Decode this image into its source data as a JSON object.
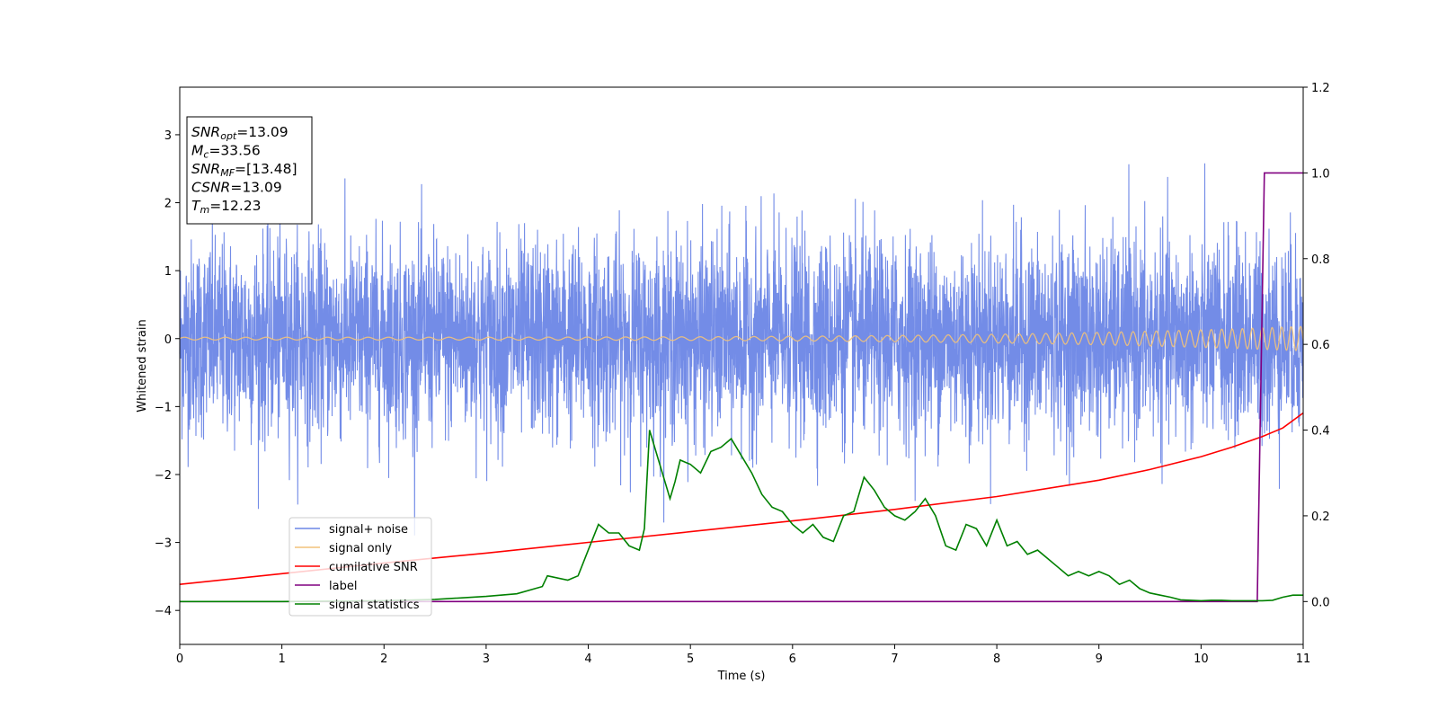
{
  "chart_data": {
    "type": "line",
    "xlabel": "Time (s)",
    "ylabel": "Whitened strain",
    "xlim": [
      0,
      11
    ],
    "ylim_left": [
      -4.5,
      3.7
    ],
    "ylim_right": [
      -0.1,
      1.2
    ],
    "x_ticks": [
      "0",
      "1",
      "2",
      "3",
      "4",
      "5",
      "6",
      "7",
      "8",
      "9",
      "10",
      "11"
    ],
    "y_left_ticks": [
      "3",
      "2",
      "1",
      "0",
      "−1",
      "−2",
      "−3",
      "−4"
    ],
    "y_right_ticks": [
      "1.2",
      "1.0",
      "0.8",
      "0.6",
      "0.4",
      "0.2",
      "0.0"
    ],
    "grid": false,
    "legend_position": "lower-left",
    "series": [
      {
        "name": "signal+ noise",
        "color": "#6b86e6",
        "axis": "left",
        "kind": "noise",
        "typical_amplitude": 1.3,
        "peak_values": [
          3.33,
          2.78,
          2.62,
          -2.67,
          -2.69,
          -3.1
        ]
      },
      {
        "name": "signal only",
        "color": "#f2c27a",
        "axis": "left",
        "kind": "chirp",
        "amplitude_start": 0.02,
        "amplitude_end": 0.18
      },
      {
        "name": "cumilative SNR",
        "color": "#ff0000",
        "axis": "right",
        "x": [
          0,
          1,
          2,
          3,
          4,
          5,
          6,
          7,
          8,
          9,
          9.5,
          10,
          10.3,
          10.6,
          10.8,
          11
        ],
        "y": [
          0.04,
          0.065,
          0.09,
          0.113,
          0.138,
          0.163,
          0.188,
          0.215,
          0.245,
          0.283,
          0.308,
          0.338,
          0.36,
          0.385,
          0.405,
          0.44
        ]
      },
      {
        "name": "label",
        "color": "#800080",
        "axis": "right",
        "x": [
          0,
          10.55,
          10.62,
          11
        ],
        "y": [
          0.0,
          0.0,
          1.0,
          1.0
        ]
      },
      {
        "name": "signal statistics",
        "color": "#008000",
        "axis": "right",
        "x": [
          0,
          1,
          2,
          2.5,
          3,
          3.3,
          3.55,
          3.6,
          3.8,
          3.9,
          4.0,
          4.1,
          4.2,
          4.3,
          4.4,
          4.5,
          4.55,
          4.6,
          4.7,
          4.8,
          4.85,
          4.9,
          5.0,
          5.1,
          5.2,
          5.3,
          5.4,
          5.5,
          5.6,
          5.7,
          5.8,
          5.9,
          6.0,
          6.1,
          6.2,
          6.3,
          6.4,
          6.5,
          6.6,
          6.7,
          6.8,
          6.9,
          7.0,
          7.1,
          7.2,
          7.3,
          7.4,
          7.5,
          7.6,
          7.7,
          7.8,
          7.9,
          8.0,
          8.1,
          8.2,
          8.3,
          8.4,
          8.5,
          8.6,
          8.7,
          8.8,
          8.9,
          9.0,
          9.1,
          9.2,
          9.3,
          9.4,
          9.5,
          9.6,
          9.7,
          9.8,
          9.9,
          10.0,
          10.1,
          10.2,
          10.3,
          10.4,
          10.5,
          10.6,
          10.7,
          10.8,
          10.9,
          11
        ],
        "y": [
          0.0,
          0.0,
          0.002,
          0.005,
          0.012,
          0.018,
          0.035,
          0.06,
          0.05,
          0.06,
          0.12,
          0.18,
          0.16,
          0.16,
          0.13,
          0.12,
          0.17,
          0.4,
          0.32,
          0.24,
          0.28,
          0.33,
          0.32,
          0.3,
          0.35,
          0.36,
          0.38,
          0.34,
          0.3,
          0.25,
          0.22,
          0.21,
          0.18,
          0.16,
          0.18,
          0.15,
          0.14,
          0.2,
          0.21,
          0.29,
          0.26,
          0.22,
          0.2,
          0.19,
          0.21,
          0.24,
          0.2,
          0.13,
          0.12,
          0.18,
          0.17,
          0.13,
          0.19,
          0.13,
          0.14,
          0.11,
          0.12,
          0.1,
          0.08,
          0.06,
          0.07,
          0.06,
          0.07,
          0.06,
          0.04,
          0.05,
          0.03,
          0.02,
          0.015,
          0.01,
          0.004,
          0.003,
          0.002,
          0.003,
          0.003,
          0.002,
          0.002,
          0.002,
          0.002,
          0.003,
          0.01,
          0.015,
          0.015
        ]
      }
    ],
    "annotation_box": [
      {
        "var": "SNR",
        "sub": "opt",
        "value": "=13.09"
      },
      {
        "var": "M",
        "sub": "c",
        "value": "=33.56"
      },
      {
        "var": "SNR",
        "sub": "MF",
        "value": "=[13.48]"
      },
      {
        "var": "CSNR",
        "sub": "",
        "value": "=13.09"
      },
      {
        "var": "T",
        "sub": "m",
        "value": "=12.23"
      }
    ]
  }
}
